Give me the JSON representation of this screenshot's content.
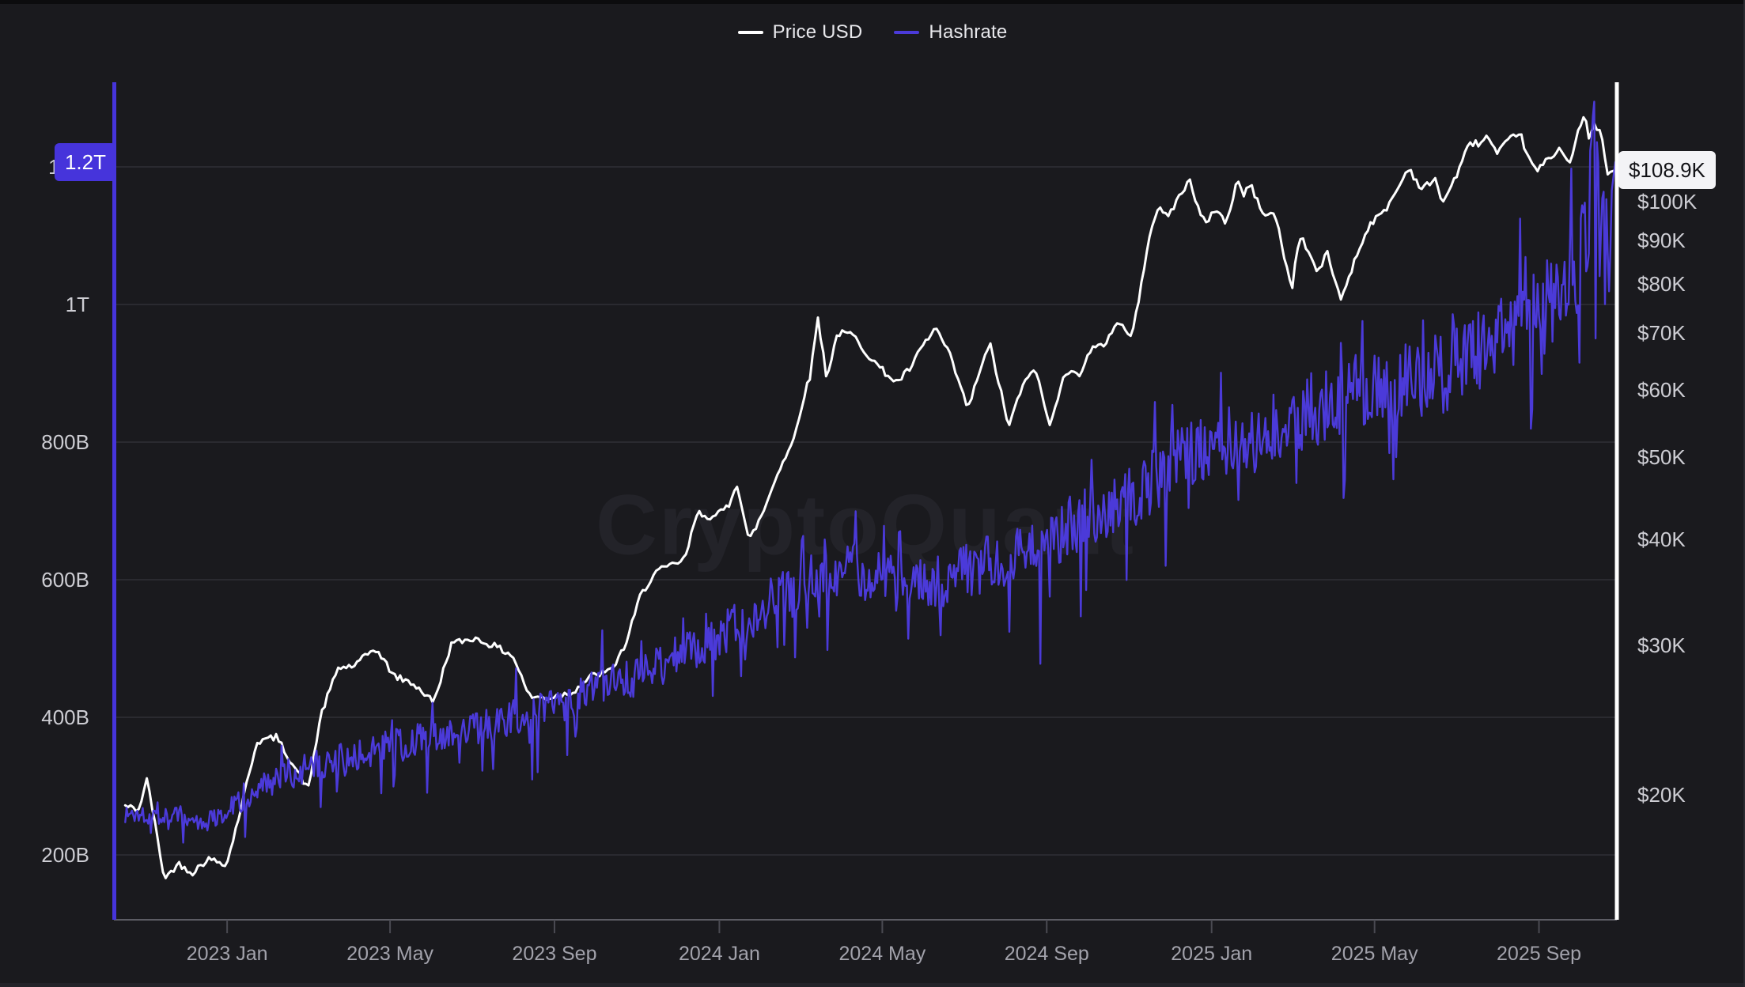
{
  "legend": {
    "items": [
      {
        "label": "Price USD",
        "color": "#FFFFFF"
      },
      {
        "label": "Hashrate",
        "color": "#4B3AD9"
      }
    ]
  },
  "watermark": "CryptoQuant",
  "badges": {
    "hashrate_current": "1.2T",
    "price_current": "$108.9K"
  },
  "colors": {
    "background": "#1A1A1E",
    "price_line": "#FFFFFF",
    "hashrate_line": "#4B3AD9",
    "hashrate_badge": "#4634DB",
    "price_badge_bg": "#F3F3F6",
    "gridline": "#2A2A30",
    "axis_line": "#5c5c64",
    "tick_mark": "#4a4a52",
    "y_label_text": "#CDCDD3",
    "x_label_text": "#A2A2AB"
  },
  "chart_data": {
    "type": "line",
    "title": "",
    "grid": "horizontal",
    "legend_position": "top-center",
    "time": {
      "t0": 2022.77,
      "t1": 2025.82
    },
    "x_ticks": [
      {
        "label": "2023 Jan",
        "t": 2023.0
      },
      {
        "label": "2023 May",
        "t": 2023.331
      },
      {
        "label": "2023 Sep",
        "t": 2023.665
      },
      {
        "label": "2024 Jan",
        "t": 2024.0
      },
      {
        "label": "2024 May",
        "t": 2024.331
      },
      {
        "label": "2024 Sep",
        "t": 2024.665
      },
      {
        "label": "2025 Jan",
        "t": 2025.0
      },
      {
        "label": "2025 May",
        "t": 2025.331
      },
      {
        "label": "2025 Sep",
        "t": 2025.665
      }
    ],
    "left_axis": {
      "name": "Hashrate",
      "scale": "linear",
      "ticks": [
        {
          "label": "1.2T",
          "value": 1200
        },
        {
          "label": "1T",
          "value": 1000
        },
        {
          "label": "800B",
          "value": 800
        },
        {
          "label": "600B",
          "value": 600
        },
        {
          "label": "400B",
          "value": 400
        },
        {
          "label": "200B",
          "value": 200
        }
      ]
    },
    "right_axis": {
      "name": "Price USD",
      "scale": "log",
      "ticks": [
        {
          "label": "$100K",
          "value": 100
        },
        {
          "label": "$90K",
          "value": 90
        },
        {
          "label": "$80K",
          "value": 80
        },
        {
          "label": "$70K",
          "value": 70
        },
        {
          "label": "$60K",
          "value": 60
        },
        {
          "label": "$50K",
          "value": 50
        },
        {
          "label": "$40K",
          "value": 40
        },
        {
          "label": "$30K",
          "value": 30
        },
        {
          "label": "$20K",
          "value": 20
        }
      ]
    },
    "series": [
      {
        "name": "Price USD",
        "axis": "right",
        "unit": "thousand USD",
        "color": "#FFFFFF",
        "stroke_width": 3,
        "step_days": 2,
        "noise_amp": 0.018,
        "last_value": 108.9,
        "anchors": [
          [
            2022.793,
            19.4
          ],
          [
            2022.82,
            19.2
          ],
          [
            2022.838,
            20.9
          ],
          [
            2022.858,
            17.8
          ],
          [
            2022.873,
            15.9
          ],
          [
            2022.9,
            16.6
          ],
          [
            2022.93,
            16.2
          ],
          [
            2022.96,
            16.8
          ],
          [
            2023.0,
            16.6
          ],
          [
            2023.03,
            19.5
          ],
          [
            2023.06,
            23.1
          ],
          [
            2023.1,
            23.4
          ],
          [
            2023.13,
            21.9
          ],
          [
            2023.165,
            20.3
          ],
          [
            2023.19,
            24.8
          ],
          [
            2023.225,
            28.2
          ],
          [
            2023.26,
            28.4
          ],
          [
            2023.3,
            29.8
          ],
          [
            2023.34,
            27.6
          ],
          [
            2023.38,
            27.0
          ],
          [
            2023.42,
            25.7
          ],
          [
            2023.455,
            30.1
          ],
          [
            2023.5,
            30.6
          ],
          [
            2023.54,
            30.0
          ],
          [
            2023.58,
            29.2
          ],
          [
            2023.615,
            26.1
          ],
          [
            2023.65,
            26.0
          ],
          [
            2023.7,
            26.4
          ],
          [
            2023.74,
            27.6
          ],
          [
            2023.78,
            28.0
          ],
          [
            2023.81,
            30.1
          ],
          [
            2023.84,
            34.4
          ],
          [
            2023.87,
            36.6
          ],
          [
            2023.9,
            37.2
          ],
          [
            2023.93,
            37.9
          ],
          [
            2023.955,
            43.0
          ],
          [
            2023.99,
            42.4
          ],
          [
            2024.02,
            44.0
          ],
          [
            2024.035,
            46.8
          ],
          [
            2024.06,
            39.8
          ],
          [
            2024.09,
            43.2
          ],
          [
            2024.12,
            48.2
          ],
          [
            2024.15,
            52.2
          ],
          [
            2024.17,
            58.5
          ],
          [
            2024.185,
            62.5
          ],
          [
            2024.2,
            73.2
          ],
          [
            2024.218,
            62.0
          ],
          [
            2024.24,
            70.0
          ],
          [
            2024.27,
            69.8
          ],
          [
            2024.3,
            66.2
          ],
          [
            2024.325,
            63.8
          ],
          [
            2024.36,
            61.2
          ],
          [
            2024.39,
            63.8
          ],
          [
            2024.41,
            67.2
          ],
          [
            2024.44,
            71.0
          ],
          [
            2024.47,
            65.5
          ],
          [
            2024.505,
            56.9
          ],
          [
            2024.53,
            63.5
          ],
          [
            2024.55,
            67.9
          ],
          [
            2024.588,
            54.2
          ],
          [
            2024.61,
            59.5
          ],
          [
            2024.64,
            64.0
          ],
          [
            2024.672,
            54.2
          ],
          [
            2024.7,
            63.0
          ],
          [
            2024.73,
            62.5
          ],
          [
            2024.755,
            67.0
          ],
          [
            2024.78,
            67.6
          ],
          [
            2024.81,
            72.5
          ],
          [
            2024.835,
            69.2
          ],
          [
            2024.852,
            76.0
          ],
          [
            2024.872,
            91.0
          ],
          [
            2024.89,
            98.2
          ],
          [
            2024.91,
            96.0
          ],
          [
            2024.935,
            101.5
          ],
          [
            2024.956,
            106.2
          ],
          [
            2024.975,
            97.2
          ],
          [
            2024.99,
            93.8
          ],
          [
            2025.008,
            98.5
          ],
          [
            2025.03,
            94.2
          ],
          [
            2025.052,
            106.2
          ],
          [
            2025.065,
            101.9
          ],
          [
            2025.08,
            104.8
          ],
          [
            2025.1,
            97.5
          ],
          [
            2025.13,
            96.2
          ],
          [
            2025.148,
            86.0
          ],
          [
            2025.163,
            78.8
          ],
          [
            2025.178,
            91.5
          ],
          [
            2025.2,
            86.6
          ],
          [
            2025.215,
            82.4
          ],
          [
            2025.235,
            87.0
          ],
          [
            2025.262,
            76.6
          ],
          [
            2025.29,
            85.0
          ],
          [
            2025.32,
            94.0
          ],
          [
            2025.35,
            97.2
          ],
          [
            2025.38,
            104.0
          ],
          [
            2025.4,
            109.8
          ],
          [
            2025.425,
            103.6
          ],
          [
            2025.455,
            105.9
          ],
          [
            2025.47,
            99.8
          ],
          [
            2025.5,
            108.2
          ],
          [
            2025.525,
            117.5
          ],
          [
            2025.545,
            117.0
          ],
          [
            2025.56,
            119.5
          ],
          [
            2025.58,
            113.5
          ],
          [
            2025.6,
            117.5
          ],
          [
            2025.625,
            121.0
          ],
          [
            2025.645,
            112.0
          ],
          [
            2025.66,
            108.6
          ],
          [
            2025.685,
            112.4
          ],
          [
            2025.71,
            115.8
          ],
          [
            2025.728,
            111.0
          ],
          [
            2025.748,
            122.5
          ],
          [
            2025.758,
            126.0
          ],
          [
            2025.768,
            118.5
          ],
          [
            2025.776,
            123.0
          ],
          [
            2025.79,
            121.0
          ],
          [
            2025.798,
            113.5
          ],
          [
            2025.806,
            106.8
          ],
          [
            2025.815,
            108.9
          ]
        ]
      },
      {
        "name": "Hashrate",
        "axis": "left",
        "unit": "B (mean hashrate)",
        "color": "#4B3AD9",
        "stroke_width": 2.4,
        "step_days": 1,
        "noise_amp": 0.13,
        "down_spike_prob": 0.06,
        "down_spike_extra": 0.17,
        "last_value": 1207,
        "anchors": [
          [
            2022.793,
            258
          ],
          [
            2022.85,
            262
          ],
          [
            2022.9,
            256
          ],
          [
            2022.96,
            248
          ],
          [
            2023.0,
            268
          ],
          [
            2023.08,
            302
          ],
          [
            2023.17,
            328
          ],
          [
            2023.25,
            342
          ],
          [
            2023.33,
            360
          ],
          [
            2023.42,
            372
          ],
          [
            2023.5,
            383
          ],
          [
            2023.58,
            400
          ],
          [
            2023.67,
            418
          ],
          [
            2023.75,
            440
          ],
          [
            2023.83,
            458
          ],
          [
            2023.92,
            492
          ],
          [
            2024.0,
            518
          ],
          [
            2024.08,
            556
          ],
          [
            2024.17,
            592
          ],
          [
            2024.25,
            618
          ],
          [
            2024.33,
            600
          ],
          [
            2024.42,
            590
          ],
          [
            2024.5,
            613
          ],
          [
            2024.58,
            632
          ],
          [
            2024.67,
            658
          ],
          [
            2024.75,
            696
          ],
          [
            2024.83,
            718
          ],
          [
            2024.92,
            766
          ],
          [
            2025.0,
            792
          ],
          [
            2025.08,
            806
          ],
          [
            2025.17,
            832
          ],
          [
            2025.25,
            866
          ],
          [
            2025.33,
            882
          ],
          [
            2025.42,
            892
          ],
          [
            2025.5,
            922
          ],
          [
            2025.58,
            948
          ],
          [
            2025.67,
            988
          ],
          [
            2025.73,
            1020
          ],
          [
            2025.765,
            1120
          ],
          [
            2025.777,
            1268
          ],
          [
            2025.79,
            1060
          ],
          [
            2025.8,
            1150
          ],
          [
            2025.808,
            1000
          ],
          [
            2025.815,
            1207
          ]
        ]
      }
    ]
  }
}
